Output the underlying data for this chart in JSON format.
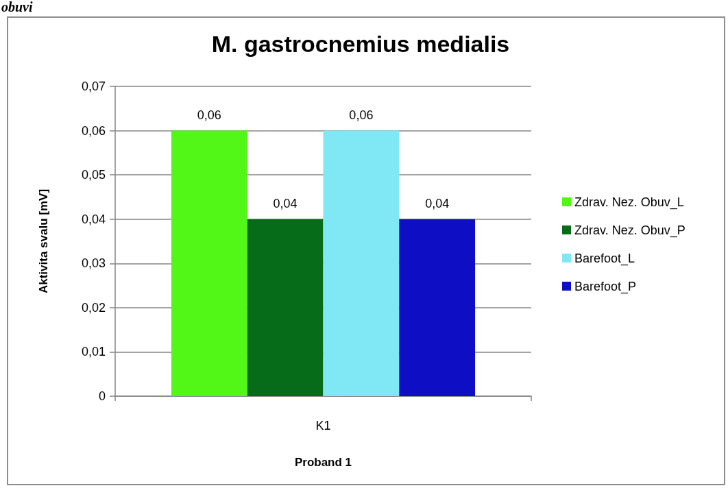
{
  "chart_data": {
    "type": "bar",
    "title": "M. gastrocnemius medialis",
    "xlabel": "Proband 1",
    "ylabel": "Aktivita svalu [mV]",
    "annotations": [
      "obuvi"
    ],
    "categories": [
      "K1"
    ],
    "series": [
      {
        "name": "Zdrav. Nez. Obuv_L",
        "color": "#52f617",
        "values": [
          0.06
        ],
        "value_labels": [
          "0,06"
        ]
      },
      {
        "name": "Zdrav. Nez. Obuv_P",
        "color": "#076c19",
        "values": [
          0.04
        ],
        "value_labels": [
          "0,04"
        ]
      },
      {
        "name": "Barefoot_L",
        "color": "#7fe8f4",
        "values": [
          0.06
        ],
        "value_labels": [
          "0,06"
        ]
      },
      {
        "name": "Barefoot_P",
        "color": "#0e0fc5",
        "values": [
          0.04
        ],
        "value_labels": [
          "0,04"
        ]
      }
    ],
    "ylim": [
      0,
      0.07
    ],
    "yticks": [
      {
        "value": 0,
        "label": "0"
      },
      {
        "value": 0.01,
        "label": "0,01"
      },
      {
        "value": 0.02,
        "label": "0,02"
      },
      {
        "value": 0.03,
        "label": "0,03"
      },
      {
        "value": 0.04,
        "label": "0,04"
      },
      {
        "value": 0.05,
        "label": "0,05"
      },
      {
        "value": 0.06,
        "label": "0,06"
      },
      {
        "value": 0.07,
        "label": "0,07"
      }
    ],
    "grid": "y",
    "legend": "right"
  }
}
